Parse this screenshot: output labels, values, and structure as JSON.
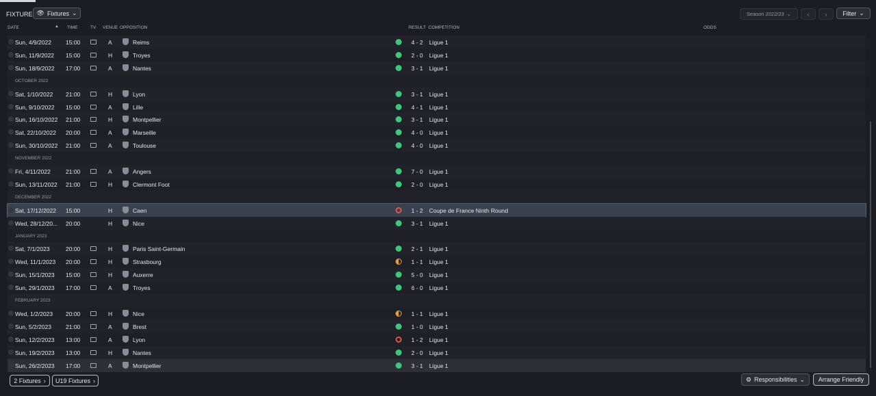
{
  "header": {
    "title": "FIXTURES",
    "view_button": "Fixtures",
    "season": "Season 2022/23",
    "filter": "Filter"
  },
  "columns": [
    "DATE",
    "TIME",
    "TV",
    "VENUE",
    "OPPOSITION",
    "RESULT",
    "COMPETITION",
    "ODDS"
  ],
  "rows": [
    {
      "date": "Sun, 4/9/2022",
      "time": "15:00",
      "tv": true,
      "venue": "A",
      "opposition": "Reims",
      "outcome": "W",
      "result": "4 - 2",
      "competition": "Ligue 1"
    },
    {
      "date": "Sun, 11/9/2022",
      "time": "15:00",
      "tv": true,
      "venue": "H",
      "opposition": "Troyes",
      "outcome": "W",
      "result": "2 - 0",
      "competition": "Ligue 1"
    },
    {
      "date": "Sun, 18/9/2022",
      "time": "17:00",
      "tv": true,
      "venue": "A",
      "opposition": "Nantes",
      "outcome": "W",
      "result": "3 - 1",
      "competition": "Ligue 1"
    },
    {
      "month": "OCTOBER 2022"
    },
    {
      "date": "Sat, 1/10/2022",
      "time": "21:00",
      "tv": true,
      "venue": "H",
      "opposition": "Lyon",
      "outcome": "W",
      "result": "3 - 1",
      "competition": "Ligue 1"
    },
    {
      "date": "Sun, 9/10/2022",
      "time": "15:00",
      "tv": true,
      "venue": "A",
      "opposition": "Lille",
      "outcome": "W",
      "result": "4 - 1",
      "competition": "Ligue 1"
    },
    {
      "date": "Sun, 16/10/2022",
      "time": "21:00",
      "tv": true,
      "venue": "H",
      "opposition": "Montpellier",
      "outcome": "W",
      "result": "3 - 1",
      "competition": "Ligue 1"
    },
    {
      "date": "Sat, 22/10/2022",
      "time": "20:00",
      "tv": true,
      "venue": "A",
      "opposition": "Marseille",
      "outcome": "W",
      "result": "4 - 0",
      "competition": "Ligue 1"
    },
    {
      "date": "Sun, 30/10/2022",
      "time": "21:00",
      "tv": true,
      "venue": "A",
      "opposition": "Toulouse",
      "outcome": "W",
      "result": "4 - 0",
      "competition": "Ligue 1"
    },
    {
      "month": "NOVEMBER 2022"
    },
    {
      "date": "Fri, 4/11/2022",
      "time": "21:00",
      "tv": true,
      "venue": "A",
      "opposition": "Angers",
      "outcome": "W",
      "result": "7 - 0",
      "competition": "Ligue 1"
    },
    {
      "date": "Sun, 13/11/2022",
      "time": "21:00",
      "tv": true,
      "venue": "H",
      "opposition": "Clermont Foot",
      "outcome": "W",
      "result": "2 - 0",
      "competition": "Ligue 1"
    },
    {
      "month": "DECEMBER 2022"
    },
    {
      "date": "Sat, 17/12/2022",
      "time": "15:00",
      "tv": false,
      "venue": "H",
      "opposition": "Caen",
      "outcome": "L",
      "result": "1 - 2",
      "competition": "Coupe de France Ninth Round",
      "selected": true
    },
    {
      "date": "Wed, 28/12/20...",
      "time": "20:00",
      "tv": false,
      "venue": "H",
      "opposition": "Nice",
      "outcome": "W",
      "result": "3 - 1",
      "competition": "Ligue 1"
    },
    {
      "month": "JANUARY 2023"
    },
    {
      "date": "Sat, 7/1/2023",
      "time": "20:00",
      "tv": true,
      "venue": "H",
      "opposition": "Paris Saint-Germain",
      "outcome": "W",
      "result": "2 - 1",
      "competition": "Ligue 1"
    },
    {
      "date": "Wed, 11/1/2023",
      "time": "20:00",
      "tv": true,
      "venue": "H",
      "opposition": "Strasbourg",
      "outcome": "D",
      "result": "1 - 1",
      "competition": "Ligue 1"
    },
    {
      "date": "Sun, 15/1/2023",
      "time": "15:00",
      "tv": true,
      "venue": "H",
      "opposition": "Auxerre",
      "outcome": "W",
      "result": "5 - 0",
      "competition": "Ligue 1"
    },
    {
      "date": "Sun, 29/1/2023",
      "time": "17:00",
      "tv": true,
      "venue": "A",
      "opposition": "Troyes",
      "outcome": "W",
      "result": "6 - 0",
      "competition": "Ligue 1"
    },
    {
      "month": "FEBRUARY 2023"
    },
    {
      "date": "Wed, 1/2/2023",
      "time": "20:00",
      "tv": true,
      "venue": "H",
      "opposition": "Nice",
      "outcome": "D",
      "result": "1 - 1",
      "competition": "Ligue 1"
    },
    {
      "date": "Sun, 5/2/2023",
      "time": "21:00",
      "tv": true,
      "venue": "A",
      "opposition": "Brest",
      "outcome": "W",
      "result": "1 - 0",
      "competition": "Ligue 1"
    },
    {
      "date": "Sun, 12/2/2023",
      "time": "13:00",
      "tv": true,
      "venue": "A",
      "opposition": "Lyon",
      "outcome": "L",
      "result": "1 - 2",
      "competition": "Ligue 1"
    },
    {
      "date": "Sun, 19/2/2023",
      "time": "13:00",
      "tv": true,
      "venue": "H",
      "opposition": "Nantes",
      "outcome": "W",
      "result": "2 - 0",
      "competition": "Ligue 1"
    },
    {
      "date": "Sun, 26/2/2023",
      "time": "17:00",
      "tv": true,
      "venue": "A",
      "opposition": "Montpellier",
      "outcome": "W",
      "result": "3 - 1",
      "competition": "Ligue 1",
      "hover": true
    }
  ],
  "footer": {
    "left_buttons": [
      "2 Fixtures",
      "U19 Fixtures"
    ],
    "responsibilities": "Responsibilities",
    "arrange": "Arrange Friendly"
  }
}
